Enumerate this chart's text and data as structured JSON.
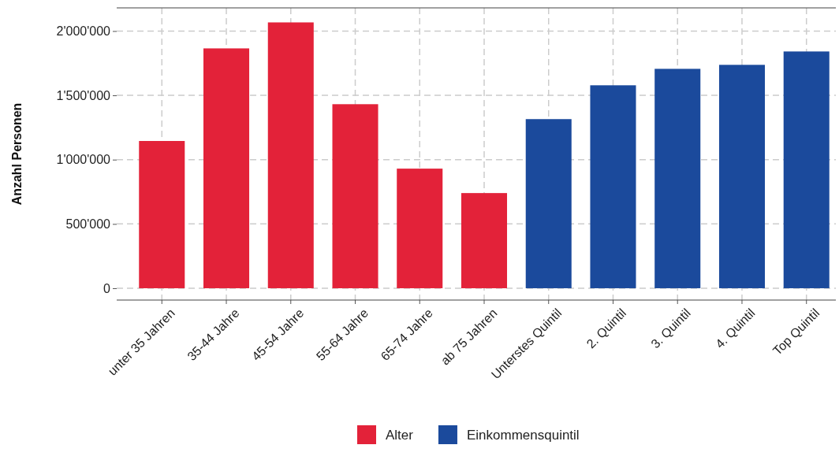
{
  "chart_data": {
    "type": "bar",
    "ylabel": "Anzahl Personen",
    "categories": [
      "unter 35 Jahren",
      "35-44 Jahre",
      "45-54 Jahre",
      "55-64 Jahre",
      "65-74 Jahre",
      "ab 75 Jahren",
      "Unterstes Quintil",
      "2. Quintil",
      "3. Quintil",
      "4. Quintil",
      "Top Quintil"
    ],
    "series": [
      {
        "name": "Alter",
        "color": "#e32239",
        "values": [
          1145000,
          1865000,
          2067000,
          1431000,
          930000,
          740000,
          null,
          null,
          null,
          null,
          null
        ]
      },
      {
        "name": "Einkommensquintil",
        "color": "#1b4a9c",
        "values": [
          null,
          null,
          null,
          null,
          null,
          null,
          1315000,
          1578000,
          1706000,
          1737000,
          1841000
        ]
      }
    ],
    "ylim": [
      -92000,
      2180000
    ],
    "yticks": [
      {
        "value": 0,
        "label": "0"
      },
      {
        "value": 500000,
        "label": "500'000"
      },
      {
        "value": 1000000,
        "label": "1'000'000"
      },
      {
        "value": 1500000,
        "label": "1'500'000"
      },
      {
        "value": 2000000,
        "label": "2'000'000"
      }
    ],
    "grid": true,
    "legend": "bottom"
  }
}
